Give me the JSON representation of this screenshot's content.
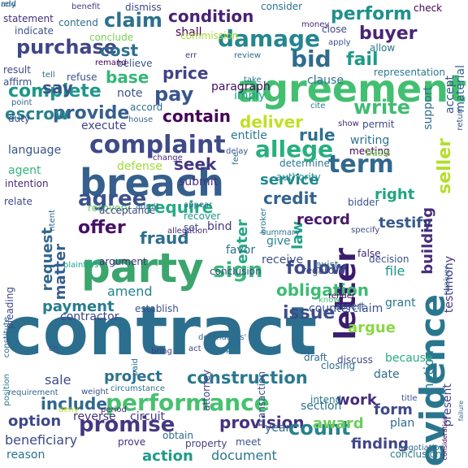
{
  "palette": [
    "#440154",
    "#3b528b",
    "#21918c",
    "#5ec962",
    "#fde725"
  ],
  "words": [
    {
      "text": "contract",
      "color": "#2c6e8e"
    },
    {
      "text": "party",
      "color": "#3aa66e"
    },
    {
      "text": "agreement",
      "color": "#43bf71"
    },
    {
      "text": "breach",
      "color": "#35608d"
    },
    {
      "text": "evidence",
      "color": "#2a768e"
    },
    {
      "text": "letter",
      "color": "#3b1c6e"
    },
    {
      "text": "complaint",
      "color": "#3e4a89"
    },
    {
      "text": "damage",
      "color": "#24868e"
    },
    {
      "text": "performance",
      "color": "#47c16e"
    },
    {
      "text": "term",
      "color": "#31688e"
    },
    {
      "text": "allege",
      "color": "#29af7f"
    },
    {
      "text": "construction",
      "color": "#2a788e"
    },
    {
      "text": "promise",
      "color": "#453781"
    },
    {
      "text": "agree",
      "color": "#3b528b"
    },
    {
      "text": "require",
      "color": "#25ab82"
    },
    {
      "text": "provision",
      "color": "#46327e"
    },
    {
      "text": "issue",
      "color": "#3e4c8a"
    },
    {
      "text": "write",
      "color": "#3fbc73"
    },
    {
      "text": "claim",
      "color": "#2d718e"
    },
    {
      "text": "purchase",
      "color": "#404588"
    },
    {
      "text": "seller",
      "color": "#b5de2b"
    },
    {
      "text": "credit",
      "color": "#32648e"
    },
    {
      "text": "offer",
      "color": "#471063"
    },
    {
      "text": "sign",
      "color": "#38b977"
    },
    {
      "text": "follow",
      "color": "#3e4989"
    },
    {
      "text": "count",
      "color": "#26828e"
    },
    {
      "text": "obligation",
      "color": "#3dbc74"
    },
    {
      "text": "perform",
      "color": "#21908d"
    },
    {
      "text": "condition",
      "color": "#482173"
    },
    {
      "text": "bid",
      "color": "#2f6c8e"
    },
    {
      "text": "fail",
      "color": "#1f9a8a"
    },
    {
      "text": "buyer",
      "color": "#482475"
    },
    {
      "text": "pay",
      "color": "#39568c"
    },
    {
      "text": "provide",
      "color": "#355f8d"
    },
    {
      "text": "complete",
      "color": "#1f978b"
    },
    {
      "text": "deliver",
      "color": "#c2df23"
    },
    {
      "text": "contain",
      "color": "#440256"
    },
    {
      "text": "price",
      "color": "#414287"
    },
    {
      "text": "cost",
      "color": "#2e6f8e"
    },
    {
      "text": "say",
      "color": "#3a548c"
    },
    {
      "text": "base",
      "color": "#34b679"
    },
    {
      "text": "escrow",
      "color": "#25838e"
    },
    {
      "text": "rule",
      "color": "#2d708e"
    },
    {
      "text": "fraud",
      "color": "#2e6e8e"
    },
    {
      "text": "seek",
      "color": "#453882"
    },
    {
      "text": "law",
      "color": "#1fa188"
    },
    {
      "text": "enter",
      "color": "#24aa83"
    },
    {
      "text": "record",
      "color": "#481a6c"
    },
    {
      "text": "testify",
      "color": "#375a8c"
    },
    {
      "text": "right",
      "color": "#20a386"
    },
    {
      "text": "service",
      "color": "#23898e"
    },
    {
      "text": "building",
      "color": "#472c7a"
    },
    {
      "text": "matter",
      "color": "#355e8d"
    },
    {
      "text": "request",
      "color": "#31678e"
    },
    {
      "text": "motion",
      "color": "#297b8e"
    },
    {
      "text": "present",
      "color": "#3f4889"
    },
    {
      "text": "testimony",
      "color": "#453581"
    },
    {
      "text": "payment",
      "color": "#287c8e"
    },
    {
      "text": "amend",
      "color": "#26828e"
    },
    {
      "text": "argue",
      "color": "#8bd646"
    },
    {
      "text": "project",
      "color": "#2c728e"
    },
    {
      "text": "include",
      "color": "#31678e"
    },
    {
      "text": "sale",
      "color": "#3e4a89"
    },
    {
      "text": "work",
      "color": "#472c7a"
    },
    {
      "text": "award",
      "color": "#6ccd5a"
    },
    {
      "text": "finding",
      "color": "#404688"
    },
    {
      "text": "action",
      "color": "#1e9b8a"
    },
    {
      "text": "document",
      "color": "#2a778e"
    },
    {
      "text": "section",
      "color": "#2c738e"
    },
    {
      "text": "form",
      "color": "#3e4a89"
    },
    {
      "text": "counterclaim",
      "color": "#3b528b"
    },
    {
      "text": "grant",
      "color": "#2a778e"
    },
    {
      "text": "date",
      "color": "#2f6b8e"
    },
    {
      "text": "because",
      "color": "#26ad81"
    },
    {
      "text": "file",
      "color": "#1f958b"
    },
    {
      "text": "contractor",
      "color": "#404588"
    },
    {
      "text": "favor",
      "color": "#2d718e"
    },
    {
      "text": "receive",
      "color": "#3b528b"
    },
    {
      "text": "give",
      "color": "#26828e"
    },
    {
      "text": "execute",
      "color": "#414487"
    },
    {
      "text": "language",
      "color": "#3a538b"
    },
    {
      "text": "agent",
      "color": "#31b57b"
    },
    {
      "text": "entitle",
      "color": "#2a788e"
    },
    {
      "text": "submit",
      "color": "#46307e"
    },
    {
      "text": "bind",
      "color": "#453781"
    },
    {
      "text": "writing",
      "color": "#2c728e"
    },
    {
      "text": "note",
      "color": "#3b528b"
    },
    {
      "text": "imply",
      "color": "#1e9d89"
    },
    {
      "text": "paragraph",
      "color": "#470e61"
    },
    {
      "text": "accept",
      "color": "#39568c"
    },
    {
      "text": "support",
      "color": "#2e6f8e"
    },
    {
      "text": "material",
      "color": "#33638d"
    },
    {
      "text": "clause",
      "color": "#2d708e"
    },
    {
      "text": "shall",
      "color": "#440154"
    },
    {
      "text": "statement",
      "color": "#472c7a"
    },
    {
      "text": "indicate",
      "color": "#3b528b"
    },
    {
      "text": "contend",
      "color": "#2e6e8e"
    },
    {
      "text": "benefit",
      "color": "#433e85"
    },
    {
      "text": "dismiss",
      "color": "#3f4889"
    },
    {
      "text": "consider",
      "color": "#2c728e"
    },
    {
      "text": "conclude",
      "color": "#7ad151"
    },
    {
      "text": "commission",
      "color": "#a5db36"
    },
    {
      "text": "allow",
      "color": "#2a788e"
    },
    {
      "text": "check",
      "color": "#440154"
    },
    {
      "text": "result",
      "color": "#3e4989"
    },
    {
      "text": "affirm",
      "color": "#3b528b"
    },
    {
      "text": "tell",
      "color": "#2f6c8e"
    },
    {
      "text": "refuse",
      "color": "#3b528b"
    },
    {
      "text": "believe",
      "color": "#39568c"
    },
    {
      "text": "accord",
      "color": "#2c728e"
    },
    {
      "text": "duty",
      "color": "#404688"
    },
    {
      "text": "point",
      "color": "#31688e"
    },
    {
      "text": "defense",
      "color": "#a0da39"
    },
    {
      "text": "change",
      "color": "#482878"
    },
    {
      "text": "determine",
      "color": "#2a768e"
    },
    {
      "text": "authority",
      "color": "#228d8d"
    },
    {
      "text": "meeting",
      "color": "#440154"
    },
    {
      "text": "basis",
      "color": "#7ad151"
    },
    {
      "text": "bidder",
      "color": "#3b528b"
    },
    {
      "text": "intention",
      "color": "#482878"
    },
    {
      "text": "relate",
      "color": "#3f4889"
    },
    {
      "text": "recovery",
      "color": "#5ec962"
    },
    {
      "text": "recover",
      "color": "#1f978b"
    },
    {
      "text": "set",
      "color": "#3b528b"
    },
    {
      "text": "acceptance",
      "color": "#3e4c8a"
    },
    {
      "text": "argument",
      "color": "#46307e"
    },
    {
      "text": "conclusion",
      "color": "#414487"
    },
    {
      "text": "establish",
      "color": "#3b528b"
    },
    {
      "text": "pleading",
      "color": "#3e4a89"
    },
    {
      "text": "position",
      "color": "#2a788e"
    },
    {
      "text": "plaintiffs",
      "color": "#1fa187"
    },
    {
      "text": "admit",
      "color": "#2f6c8e"
    },
    {
      "text": "appear",
      "color": "#2d708e"
    },
    {
      "text": "allegation",
      "color": "#482878"
    },
    {
      "text": "decision",
      "color": "#3b528b"
    },
    {
      "text": "regard",
      "color": "#3e4989"
    },
    {
      "text": "exist",
      "color": "#31688e"
    },
    {
      "text": "know",
      "color": "#44bf70"
    },
    {
      "text": "render",
      "color": "#440154"
    },
    {
      "text": "assert",
      "color": "#3a548c"
    },
    {
      "text": "transaction",
      "color": "#3b528b"
    },
    {
      "text": "draft",
      "color": "#31688e"
    },
    {
      "text": "closing",
      "color": "#2c728e"
    },
    {
      "text": "discuss",
      "color": "#3e4989"
    },
    {
      "text": "attorney",
      "color": "#433e85"
    },
    {
      "text": "constitute",
      "color": "#2f6c8e"
    },
    {
      "text": "requirement",
      "color": "#31688e"
    },
    {
      "text": "option",
      "color": "#3e4989"
    },
    {
      "text": "deny",
      "color": "#bddf26"
    },
    {
      "text": "reverse",
      "color": "#46307e"
    },
    {
      "text": "circuit",
      "color": "#453781"
    },
    {
      "text": "circumstance",
      "color": "#2c728e"
    },
    {
      "text": "weight",
      "color": "#3b528b"
    },
    {
      "text": "year",
      "color": "#2f6c8e"
    },
    {
      "text": "intend",
      "color": "#2a788e"
    },
    {
      "text": "plan",
      "color": "#2f6c8e"
    },
    {
      "text": "prove",
      "color": "#46307e"
    },
    {
      "text": "property",
      "color": "#433e85"
    },
    {
      "text": "meet",
      "color": "#3b528b"
    },
    {
      "text": "obtain",
      "color": "#2f6c8e"
    },
    {
      "text": "conclusion",
      "color": "#2a788e"
    },
    {
      "text": "beneficiary",
      "color": "#3e4989"
    },
    {
      "text": "reason",
      "color": "#2c728e"
    },
    {
      "text": "failure",
      "color": "#31688e"
    },
    {
      "text": "consideration",
      "color": "#440154"
    },
    {
      "text": "negotiation",
      "color": "#31688e"
    },
    {
      "text": "title",
      "color": "#3b528b"
    },
    {
      "text": "close",
      "color": "#3e4989"
    },
    {
      "text": "money",
      "color": "#482878"
    },
    {
      "text": "apply",
      "color": "#3b528b"
    },
    {
      "text": "review",
      "color": "#2f6c8e"
    },
    {
      "text": "err",
      "color": "#453781"
    },
    {
      "text": "remand",
      "color": "#440154"
    },
    {
      "text": "take",
      "color": "#2a788e"
    },
    {
      "text": "cite",
      "color": "#2a788e"
    },
    {
      "text": "show",
      "color": "#482878"
    },
    {
      "text": "permit",
      "color": "#3e4989"
    },
    {
      "text": "house",
      "color": "#31688e"
    },
    {
      "text": "delay",
      "color": "#3b528b"
    },
    {
      "text": "fee",
      "color": "#2f6c8e"
    },
    {
      "text": "broker",
      "color": "#2a788e"
    },
    {
      "text": "summary",
      "color": "#2c728e"
    },
    {
      "text": "specify",
      "color": "#3e4989"
    },
    {
      "text": "false",
      "color": "#482878"
    },
    {
      "text": "waiver",
      "color": "#2f6c8e"
    },
    {
      "text": "return",
      "color": "#3b528b"
    },
    {
      "text": "representation",
      "color": "#2a788e"
    },
    {
      "text": "defendants'",
      "color": "#31688e"
    },
    {
      "text": "act",
      "color": "#3e4989"
    },
    {
      "text": "par",
      "color": "#2c728e"
    },
    {
      "text": "bring",
      "color": "#453781"
    },
    {
      "text": "paid",
      "color": "#2f6c8e"
    },
    {
      "text": "ch",
      "color": "#3b528b"
    },
    {
      "text": "period",
      "color": "#482878"
    },
    {
      "text": "ntent",
      "color": "#31688e"
    },
    {
      "text": "add",
      "color": "#3e4989"
    },
    {
      "text": "rely",
      "color": "#2a788e"
    }
  ]
}
